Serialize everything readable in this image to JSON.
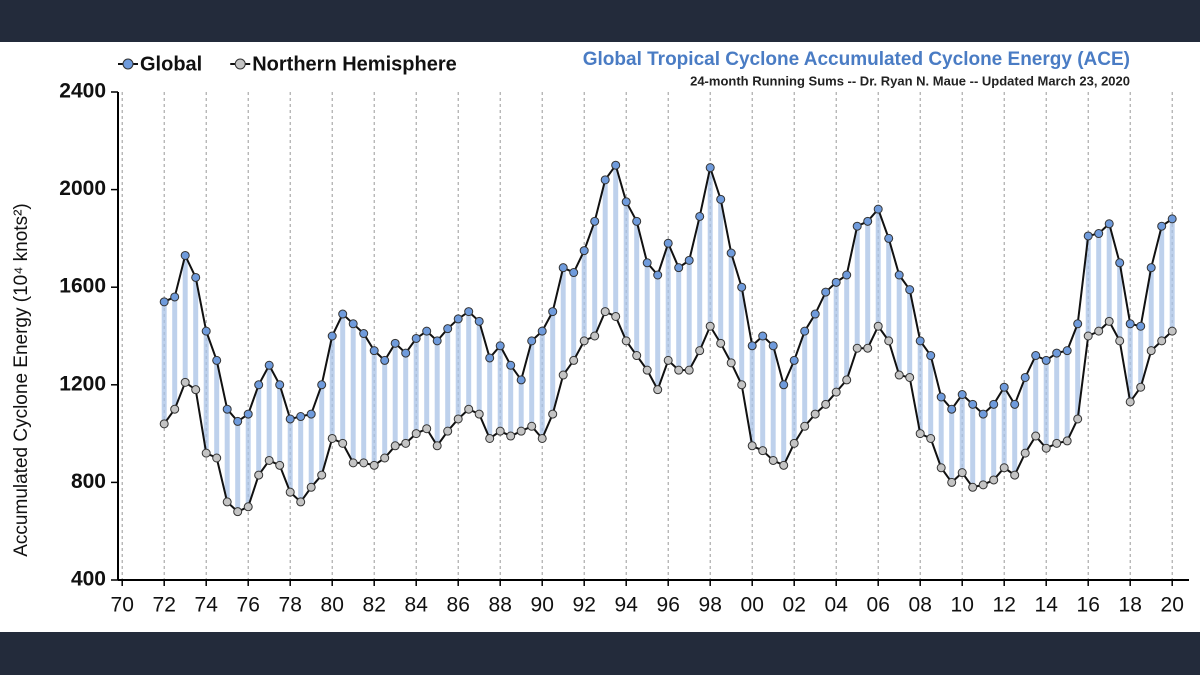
{
  "chart_data": {
    "type": "line",
    "title": "Global Tropical Cyclone Accumulated Cyclone Energy (ACE)",
    "subtitle": "24-month Running Sums -- Dr. Ryan N. Maue -- Updated March 23, 2020",
    "y_label": "Accumulated Cyclone Energy (10⁴ knots²)",
    "x": [
      1972,
      1972.5,
      1973,
      1973.5,
      1974,
      1974.5,
      1975,
      1975.5,
      1976,
      1976.5,
      1977,
      1977.5,
      1978,
      1978.5,
      1979,
      1979.5,
      1980,
      1980.5,
      1981,
      1981.5,
      1982,
      1982.5,
      1983,
      1983.5,
      1984,
      1984.5,
      1985,
      1985.5,
      1986,
      1986.5,
      1987,
      1987.5,
      1988,
      1988.5,
      1989,
      1989.5,
      1990,
      1990.5,
      1991,
      1991.5,
      1992,
      1992.5,
      1993,
      1993.5,
      1994,
      1994.5,
      1995,
      1995.5,
      1996,
      1996.5,
      1997,
      1997.5,
      1998,
      1998.5,
      1999,
      1999.5,
      2000,
      2000.5,
      2001,
      2001.5,
      2002,
      2002.5,
      2003,
      2003.5,
      2004,
      2004.5,
      2005,
      2005.5,
      2006,
      2006.5,
      2007,
      2007.5,
      2008,
      2008.5,
      2009,
      2009.5,
      2010,
      2010.5,
      2011,
      2011.5,
      2012,
      2012.5,
      2013,
      2013.5,
      2014,
      2014.5,
      2015,
      2015.5,
      2016,
      2016.5,
      2017,
      2017.5,
      2018,
      2018.5,
      2019,
      2019.5,
      2020
    ],
    "series": [
      {
        "name": "Global",
        "color": "#6f9bdc",
        "values": [
          1540,
          1560,
          1730,
          1640,
          1420,
          1300,
          1100,
          1050,
          1080,
          1200,
          1280,
          1200,
          1060,
          1070,
          1080,
          1200,
          1400,
          1490,
          1450,
          1410,
          1340,
          1300,
          1370,
          1330,
          1390,
          1420,
          1380,
          1430,
          1470,
          1500,
          1460,
          1310,
          1360,
          1280,
          1220,
          1380,
          1420,
          1500,
          1680,
          1660,
          1750,
          1870,
          2040,
          2100,
          1950,
          1870,
          1700,
          1650,
          1780,
          1680,
          1710,
          1890,
          2090,
          1960,
          1740,
          1600,
          1360,
          1400,
          1360,
          1200,
          1300,
          1420,
          1490,
          1580,
          1620,
          1650,
          1850,
          1870,
          1920,
          1800,
          1650,
          1590,
          1380,
          1320,
          1150,
          1100,
          1160,
          1120,
          1080,
          1120,
          1190,
          1120,
          1230,
          1320,
          1300,
          1330,
          1340,
          1450,
          1810,
          1820,
          1860,
          1700,
          1450,
          1440,
          1680,
          1850,
          1880
        ]
      },
      {
        "name": "Northern Hemisphere",
        "color": "#c4c4c4",
        "values": [
          1040,
          1100,
          1210,
          1180,
          920,
          900,
          720,
          680,
          700,
          830,
          890,
          870,
          760,
          720,
          780,
          830,
          980,
          960,
          880,
          880,
          870,
          900,
          950,
          960,
          1000,
          1020,
          950,
          1010,
          1060,
          1100,
          1080,
          980,
          1010,
          990,
          1010,
          1030,
          980,
          1080,
          1240,
          1300,
          1380,
          1400,
          1500,
          1480,
          1380,
          1320,
          1260,
          1180,
          1300,
          1260,
          1260,
          1340,
          1440,
          1370,
          1290,
          1200,
          950,
          930,
          890,
          870,
          960,
          1030,
          1080,
          1120,
          1170,
          1220,
          1350,
          1350,
          1440,
          1380,
          1240,
          1230,
          1000,
          980,
          860,
          800,
          840,
          780,
          790,
          810,
          860,
          830,
          920,
          990,
          940,
          960,
          970,
          1060,
          1400,
          1420,
          1460,
          1380,
          1130,
          1190,
          1340,
          1380,
          1420
        ]
      }
    ],
    "xlim": [
      1969.8,
      2020.8
    ],
    "xticks": [
      {
        "value": 1970,
        "label": "70"
      },
      {
        "value": 1972,
        "label": "72"
      },
      {
        "value": 1974,
        "label": "74"
      },
      {
        "value": 1976,
        "label": "76"
      },
      {
        "value": 1978,
        "label": "78"
      },
      {
        "value": 1980,
        "label": "80"
      },
      {
        "value": 1982,
        "label": "82"
      },
      {
        "value": 1984,
        "label": "84"
      },
      {
        "value": 1986,
        "label": "86"
      },
      {
        "value": 1988,
        "label": "88"
      },
      {
        "value": 1990,
        "label": "90"
      },
      {
        "value": 1992,
        "label": "92"
      },
      {
        "value": 1994,
        "label": "94"
      },
      {
        "value": 1996,
        "label": "96"
      },
      {
        "value": 1998,
        "label": "98"
      },
      {
        "value": 2000,
        "label": "00"
      },
      {
        "value": 2002,
        "label": "02"
      },
      {
        "value": 2004,
        "label": "04"
      },
      {
        "value": 2006,
        "label": "06"
      },
      {
        "value": 2008,
        "label": "08"
      },
      {
        "value": 2010,
        "label": "10"
      },
      {
        "value": 2012,
        "label": "12"
      },
      {
        "value": 2014,
        "label": "14"
      },
      {
        "value": 2016,
        "label": "16"
      },
      {
        "value": 2018,
        "label": "18"
      },
      {
        "value": 2020,
        "label": "20"
      }
    ],
    "ylim": [
      400,
      2400
    ],
    "yticks": [
      400,
      800,
      1200,
      1600,
      2000,
      2400
    ],
    "grid": true,
    "legend": "top-left"
  }
}
